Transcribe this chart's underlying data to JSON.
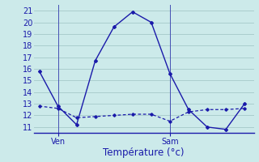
{
  "xlabel": "Température (°c)",
  "bg_color": "#cceaea",
  "grid_color": "#aacece",
  "line_color": "#1a1aaa",
  "ylim": [
    10.5,
    21.5
  ],
  "yticks": [
    11,
    12,
    13,
    14,
    15,
    16,
    17,
    18,
    19,
    20,
    21
  ],
  "line1_x": [
    0,
    1,
    2,
    3,
    4,
    5,
    6,
    7,
    8,
    9,
    10,
    11
  ],
  "line1_y": [
    15.8,
    12.8,
    11.2,
    16.7,
    19.6,
    20.9,
    20.0,
    15.6,
    12.5,
    11.0,
    10.8,
    13.0
  ],
  "line2_x": [
    0,
    1,
    2,
    3,
    4,
    5,
    6,
    7,
    8,
    9,
    10,
    11
  ],
  "line2_y": [
    12.8,
    12.6,
    11.8,
    11.9,
    12.0,
    12.1,
    12.1,
    11.5,
    12.3,
    12.5,
    12.5,
    12.6
  ],
  "xlim": [
    -0.3,
    11.5
  ],
  "ven_x": 1.0,
  "sam_x": 7.0,
  "ven_label": "Ven",
  "sam_label": "Sam",
  "tick_fontsize": 7.0,
  "label_fontsize": 8.5
}
